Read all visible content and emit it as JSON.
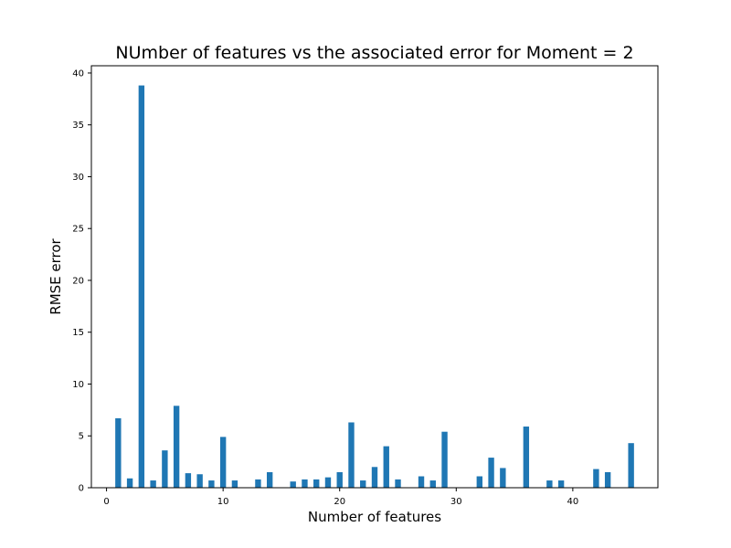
{
  "chart_data": {
    "type": "bar",
    "title": "NUmber of features vs the associated error for Moment = 2",
    "xlabel": "Number of features",
    "ylabel": "RMSE error",
    "xlim": [
      -1.3,
      47.3
    ],
    "ylim": [
      0,
      40.7
    ],
    "xticks": [
      0,
      10,
      20,
      30,
      40
    ],
    "yticks": [
      0,
      5,
      10,
      15,
      20,
      25,
      30,
      35,
      40
    ],
    "bar_color": "#1f77b4",
    "bar_width": 0.5,
    "grid": false,
    "legend": "none",
    "x": [
      1,
      2,
      3,
      4,
      5,
      6,
      7,
      8,
      9,
      10,
      11,
      13,
      14,
      16,
      17,
      18,
      19,
      20,
      21,
      22,
      23,
      24,
      25,
      27,
      28,
      29,
      32,
      33,
      34,
      36,
      38,
      39,
      42,
      43,
      45
    ],
    "values": [
      6.7,
      0.9,
      38.8,
      0.7,
      3.6,
      7.9,
      1.4,
      1.3,
      0.7,
      4.9,
      0.7,
      0.8,
      1.5,
      0.6,
      0.8,
      0.8,
      1.0,
      1.5,
      6.3,
      0.7,
      2.0,
      4.0,
      0.8,
      1.1,
      0.7,
      5.4,
      1.1,
      2.9,
      1.9,
      5.9,
      0.7,
      0.7,
      1.8,
      1.5,
      4.3
    ]
  }
}
